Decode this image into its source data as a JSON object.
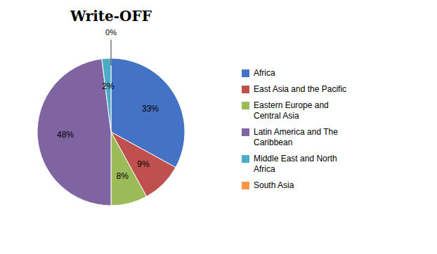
{
  "chart_data": {
    "type": "pie",
    "title": "Write-OFF",
    "categories": [
      "Africa",
      "East Asia and the Pacific",
      "Eastern Europe and\nCentral Asia",
      "Latin America and The\nCaribbean",
      "Middle East and North\nAfrica",
      "South Asia"
    ],
    "values": [
      33,
      9,
      8,
      48,
      2,
      0
    ],
    "value_labels": [
      "33%",
      "9%",
      "8%",
      "48%",
      "2%",
      "0%"
    ],
    "colors": [
      "#4472C4",
      "#C0504D",
      "#9BBB59",
      "#8064A2",
      "#4BACC6",
      "#F79646"
    ],
    "data_labels": true,
    "legend": "right"
  }
}
